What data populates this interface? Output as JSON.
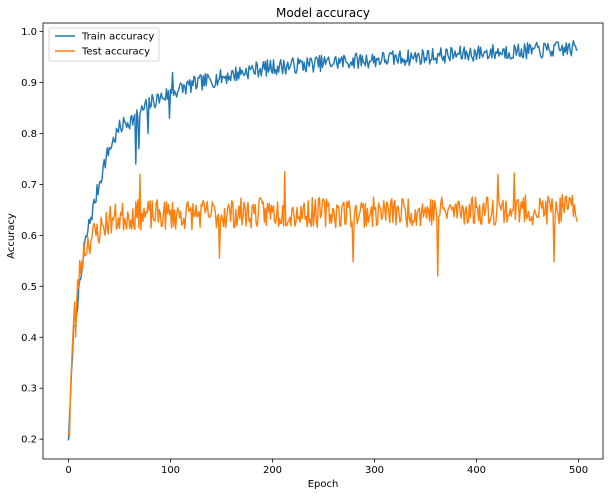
{
  "chart_data": {
    "type": "line",
    "title": "Model accuracy",
    "xlabel": "Epoch",
    "ylabel": "Accuracy",
    "xlim": [
      -25,
      524
    ],
    "ylim": [
      0.161,
      1.017
    ],
    "xticks": [
      0,
      100,
      200,
      300,
      400,
      500
    ],
    "yticks": [
      0.2,
      0.3,
      0.4,
      0.5,
      0.6,
      0.7,
      0.8,
      0.9,
      1.0
    ],
    "ytick_labels": [
      "0.2",
      "0.3",
      "0.4",
      "0.5",
      "0.6",
      "0.7",
      "0.8",
      "0.9",
      "1.0"
    ],
    "grid": false,
    "legend_position": "top-left",
    "x_range": [
      0,
      499
    ],
    "series": [
      {
        "name": "Train accuracy",
        "color": "#1f77b4",
        "anchors": [
          [
            0,
            0.2
          ],
          [
            1,
            0.24
          ],
          [
            3,
            0.33
          ],
          [
            5,
            0.41
          ],
          [
            8,
            0.46
          ],
          [
            10,
            0.48
          ],
          [
            13,
            0.53
          ],
          [
            16,
            0.58
          ],
          [
            20,
            0.62
          ],
          [
            25,
            0.66
          ],
          [
            30,
            0.7
          ],
          [
            35,
            0.74
          ],
          [
            40,
            0.77
          ],
          [
            45,
            0.79
          ],
          [
            50,
            0.81
          ],
          [
            55,
            0.82
          ],
          [
            60,
            0.825
          ],
          [
            65,
            0.83
          ],
          [
            70,
            0.84
          ],
          [
            80,
            0.86
          ],
          [
            90,
            0.87
          ],
          [
            100,
            0.88
          ],
          [
            120,
            0.895
          ],
          [
            140,
            0.905
          ],
          [
            160,
            0.915
          ],
          [
            180,
            0.925
          ],
          [
            200,
            0.93
          ],
          [
            230,
            0.935
          ],
          [
            260,
            0.94
          ],
          [
            300,
            0.945
          ],
          [
            340,
            0.95
          ],
          [
            380,
            0.955
          ],
          [
            420,
            0.96
          ],
          [
            460,
            0.963
          ],
          [
            499,
            0.967
          ]
        ],
        "noise": 0.016,
        "dips": [
          [
            7,
            0.425
          ],
          [
            66,
            0.74
          ],
          [
            69,
            0.77
          ],
          [
            78,
            0.8
          ],
          [
            99,
            0.83
          ]
        ],
        "peaks": [
          [
            102,
            0.92
          ]
        ],
        "seed": 7
      },
      {
        "name": "Test accuracy",
        "color": "#ff7f0e",
        "anchors": [
          [
            0,
            0.22
          ],
          [
            2,
            0.3
          ],
          [
            4,
            0.39
          ],
          [
            6,
            0.45
          ],
          [
            9,
            0.5
          ],
          [
            12,
            0.54
          ],
          [
            15,
            0.57
          ],
          [
            20,
            0.59
          ],
          [
            25,
            0.6
          ],
          [
            30,
            0.61
          ],
          [
            35,
            0.62
          ],
          [
            40,
            0.63
          ],
          [
            60,
            0.64
          ],
          [
            100,
            0.64
          ],
          [
            200,
            0.645
          ],
          [
            300,
            0.645
          ],
          [
            400,
            0.65
          ],
          [
            499,
            0.65
          ]
        ],
        "noise": 0.03,
        "dips": [
          [
            1,
            0.205
          ],
          [
            7,
            0.4
          ],
          [
            362,
            0.52
          ],
          [
            279,
            0.548
          ],
          [
            476,
            0.548
          ],
          [
            148,
            0.555
          ]
        ],
        "peaks": [
          [
            212,
            0.725
          ],
          [
            421,
            0.72
          ],
          [
            70,
            0.72
          ],
          [
            437,
            0.722
          ]
        ],
        "seed": 23
      }
    ]
  }
}
